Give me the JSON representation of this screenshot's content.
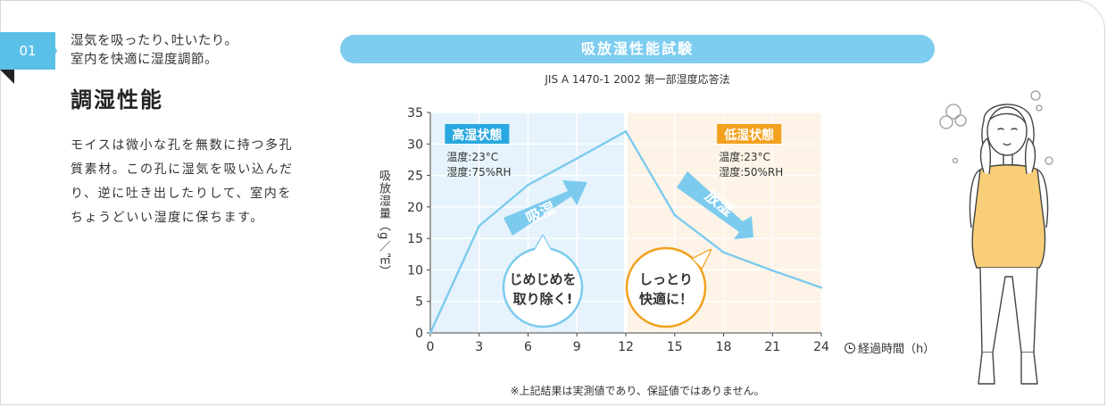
{
  "section": {
    "number": "01",
    "tagline": [
      "湿気を吸ったり､吐いたり。",
      "室内を快適に湿度調節。"
    ],
    "title": "調湿性能",
    "description": [
      "モイスは微小な孔を無数に持つ多孔",
      "質素材。この孔に湿気を吸い込んだ",
      "り、逆に吐き出したりして、室内を",
      "ちょうどいい湿度に保ちます。"
    ]
  },
  "colors": {
    "accent": "#5bc0e8",
    "banner": "#7ecdf0",
    "line": "#7ccbee",
    "high_zone": "#e6f3fc",
    "low_zone": "#fdf3e6",
    "high_badge": "#29a8e0",
    "low_badge": "#f2a11e"
  },
  "chart_data": {
    "type": "line",
    "title": "吸放湿性能試験",
    "subtitle": "JIS A 1470-1 2002 第一部湿度応答法",
    "xlabel": "経過時間（h）",
    "ylabel": "吸放湿量（g／㎡）",
    "xlim": [
      0,
      24
    ],
    "ylim": [
      0,
      35
    ],
    "x_ticks": [
      0,
      3,
      6,
      9,
      12,
      15,
      18,
      21,
      24
    ],
    "y_ticks": [
      0,
      5,
      10,
      15,
      20,
      25,
      30,
      35
    ],
    "x": [
      0,
      3,
      6,
      9,
      12,
      15,
      18,
      21,
      24
    ],
    "y": [
      0,
      17,
      23.5,
      27.7,
      32,
      18.7,
      12.8,
      9.9,
      7.2
    ],
    "grid": true,
    "zones": [
      {
        "label": "高湿状態",
        "x_range": [
          0,
          12
        ],
        "temp": "温度:23°C",
        "humidity": "湿度:75%RH",
        "arrow": "吸湿",
        "bubble": [
          "じめじめを",
          "取り除く!"
        ]
      },
      {
        "label": "低湿状態",
        "x_range": [
          12,
          24
        ],
        "temp": "温度:23°C",
        "humidity": "湿度:50%RH",
        "arrow": "放湿",
        "bubble": [
          "しっとり",
          "快適に！"
        ]
      }
    ]
  },
  "footnote": "※上記結果は実測値であり、保証値ではありません。"
}
